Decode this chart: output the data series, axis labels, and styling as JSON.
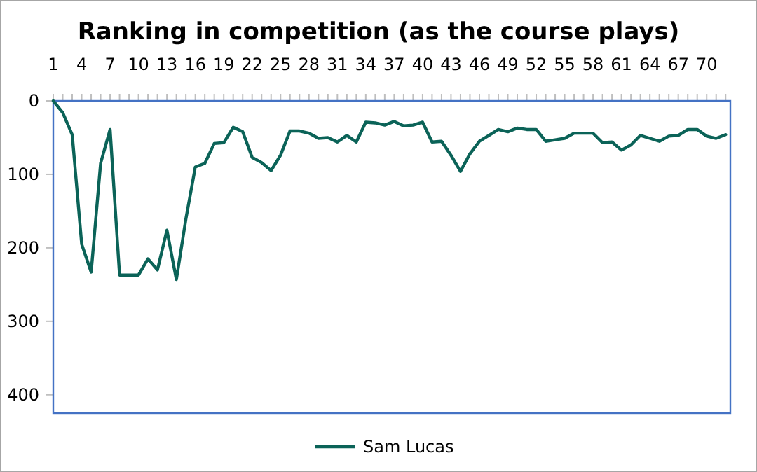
{
  "chart_data": {
    "type": "line",
    "title": "Ranking in competition (as the course plays)",
    "x": [
      1,
      2,
      3,
      4,
      5,
      6,
      7,
      8,
      9,
      10,
      11,
      12,
      13,
      14,
      15,
      16,
      17,
      18,
      19,
      20,
      21,
      22,
      23,
      24,
      25,
      26,
      27,
      28,
      29,
      30,
      31,
      32,
      33,
      34,
      35,
      36,
      37,
      38,
      39,
      40,
      41,
      42,
      43,
      44,
      45,
      46,
      47,
      48,
      49,
      50,
      51,
      52,
      53,
      54,
      55,
      56,
      57,
      58,
      59,
      60,
      61,
      62,
      63,
      64,
      65,
      66,
      67,
      68,
      69,
      70,
      71,
      72
    ],
    "series": [
      {
        "name": "Sam Lucas",
        "color": "#0b6358",
        "values": [
          0,
          16,
          46,
          195,
          233,
          85,
          39,
          237,
          237,
          237,
          215,
          230,
          176,
          243,
          161,
          90,
          85,
          58,
          57,
          36,
          42,
          77,
          84,
          95,
          74,
          41,
          41,
          44,
          51,
          50,
          56,
          47,
          56,
          29,
          30,
          33,
          28,
          34,
          33,
          29,
          56,
          55,
          74,
          96,
          72,
          55,
          47,
          39,
          42,
          37,
          39,
          39,
          55,
          53,
          51,
          44,
          44,
          44,
          57,
          56,
          67,
          60,
          47,
          51,
          55,
          48,
          47,
          39,
          39,
          48,
          51,
          46
        ]
      }
    ],
    "xlim": [
      1,
      72.5
    ],
    "xticks": [
      1,
      {
        "value": 2,
        "label": null
      },
      {
        "value": 3,
        "label": null
      },
      4,
      {
        "value": 5,
        "label": null
      },
      {
        "value": 6,
        "label": null
      },
      7,
      {
        "value": 8,
        "label": null
      },
      {
        "value": 9,
        "label": null
      },
      10,
      {
        "value": 11,
        "label": null
      },
      {
        "value": 12,
        "label": null
      },
      13,
      {
        "value": 14,
        "label": null
      },
      {
        "value": 15,
        "label": null
      },
      16,
      {
        "value": 17,
        "label": null
      },
      {
        "value": 18,
        "label": null
      },
      19,
      {
        "value": 20,
        "label": null
      },
      {
        "value": 21,
        "label": null
      },
      22,
      {
        "value": 23,
        "label": null
      },
      {
        "value": 24,
        "label": null
      },
      25,
      {
        "value": 26,
        "label": null
      },
      {
        "value": 27,
        "label": null
      },
      28,
      {
        "value": 29,
        "label": null
      },
      {
        "value": 30,
        "label": null
      },
      31,
      {
        "value": 32,
        "label": null
      },
      {
        "value": 33,
        "label": null
      },
      34,
      {
        "value": 35,
        "label": null
      },
      {
        "value": 36,
        "label": null
      },
      37,
      {
        "value": 38,
        "label": null
      },
      {
        "value": 39,
        "label": null
      },
      40,
      {
        "value": 41,
        "label": null
      },
      {
        "value": 42,
        "label": null
      },
      43,
      {
        "value": 44,
        "label": null
      },
      {
        "value": 45,
        "label": null
      },
      46,
      {
        "value": 47,
        "label": null
      },
      {
        "value": 48,
        "label": null
      },
      49,
      {
        "value": 50,
        "label": null
      },
      {
        "value": 51,
        "label": null
      },
      52,
      {
        "value": 53,
        "label": null
      },
      {
        "value": 54,
        "label": null
      },
      55,
      {
        "value": 56,
        "label": null
      },
      {
        "value": 57,
        "label": null
      },
      58,
      {
        "value": 59,
        "label": null
      },
      {
        "value": 60,
        "label": null
      },
      61,
      {
        "value": 62,
        "label": null
      },
      {
        "value": 63,
        "label": null
      },
      64,
      {
        "value": 65,
        "label": null
      },
      {
        "value": 66,
        "label": null
      },
      67,
      {
        "value": 68,
        "label": null
      },
      {
        "value": 69,
        "label": null
      },
      70,
      {
        "value": 71,
        "label": null
      },
      {
        "value": 72,
        "label": null
      }
    ],
    "ylim": [
      425,
      0
    ],
    "yticks": [
      0,
      100,
      200,
      300,
      400
    ],
    "grid": false,
    "legend": "bottom",
    "marker": "none",
    "line_style": "solid"
  }
}
